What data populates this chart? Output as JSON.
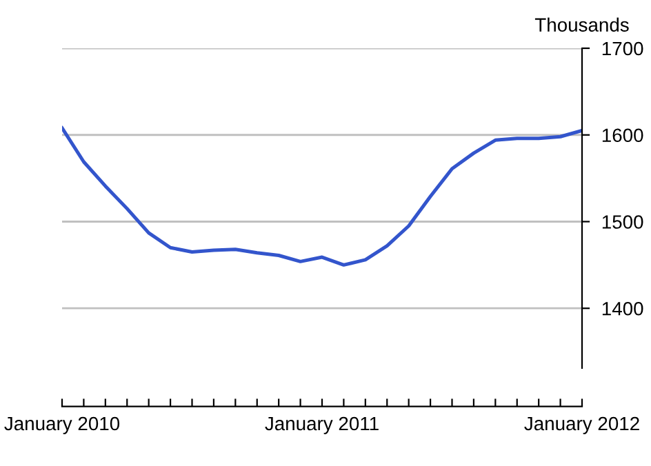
{
  "chart_data": {
    "type": "line",
    "ylabel": "Thousands",
    "categories": [
      "January 2010",
      null,
      null,
      null,
      null,
      null,
      null,
      null,
      null,
      null,
      null,
      null,
      "January 2011",
      null,
      null,
      null,
      null,
      null,
      null,
      null,
      null,
      null,
      null,
      null,
      "January 2012"
    ],
    "series": [
      {
        "color": "#3355cc",
        "values": [
          1608,
          1569,
          1541,
          1515,
          1487,
          1470,
          1465,
          1467,
          1468,
          1464,
          1461,
          1454,
          1459,
          1450,
          1456,
          1472,
          1495,
          1529,
          1561,
          1579,
          1594,
          1596,
          1596,
          1598,
          1605
        ]
      }
    ],
    "ylim": [
      1331,
      1700
    ],
    "yticks": [
      1400,
      1500,
      1600,
      1700
    ],
    "grid": "y",
    "legend": false,
    "marker": "none",
    "line_style": "solid"
  }
}
